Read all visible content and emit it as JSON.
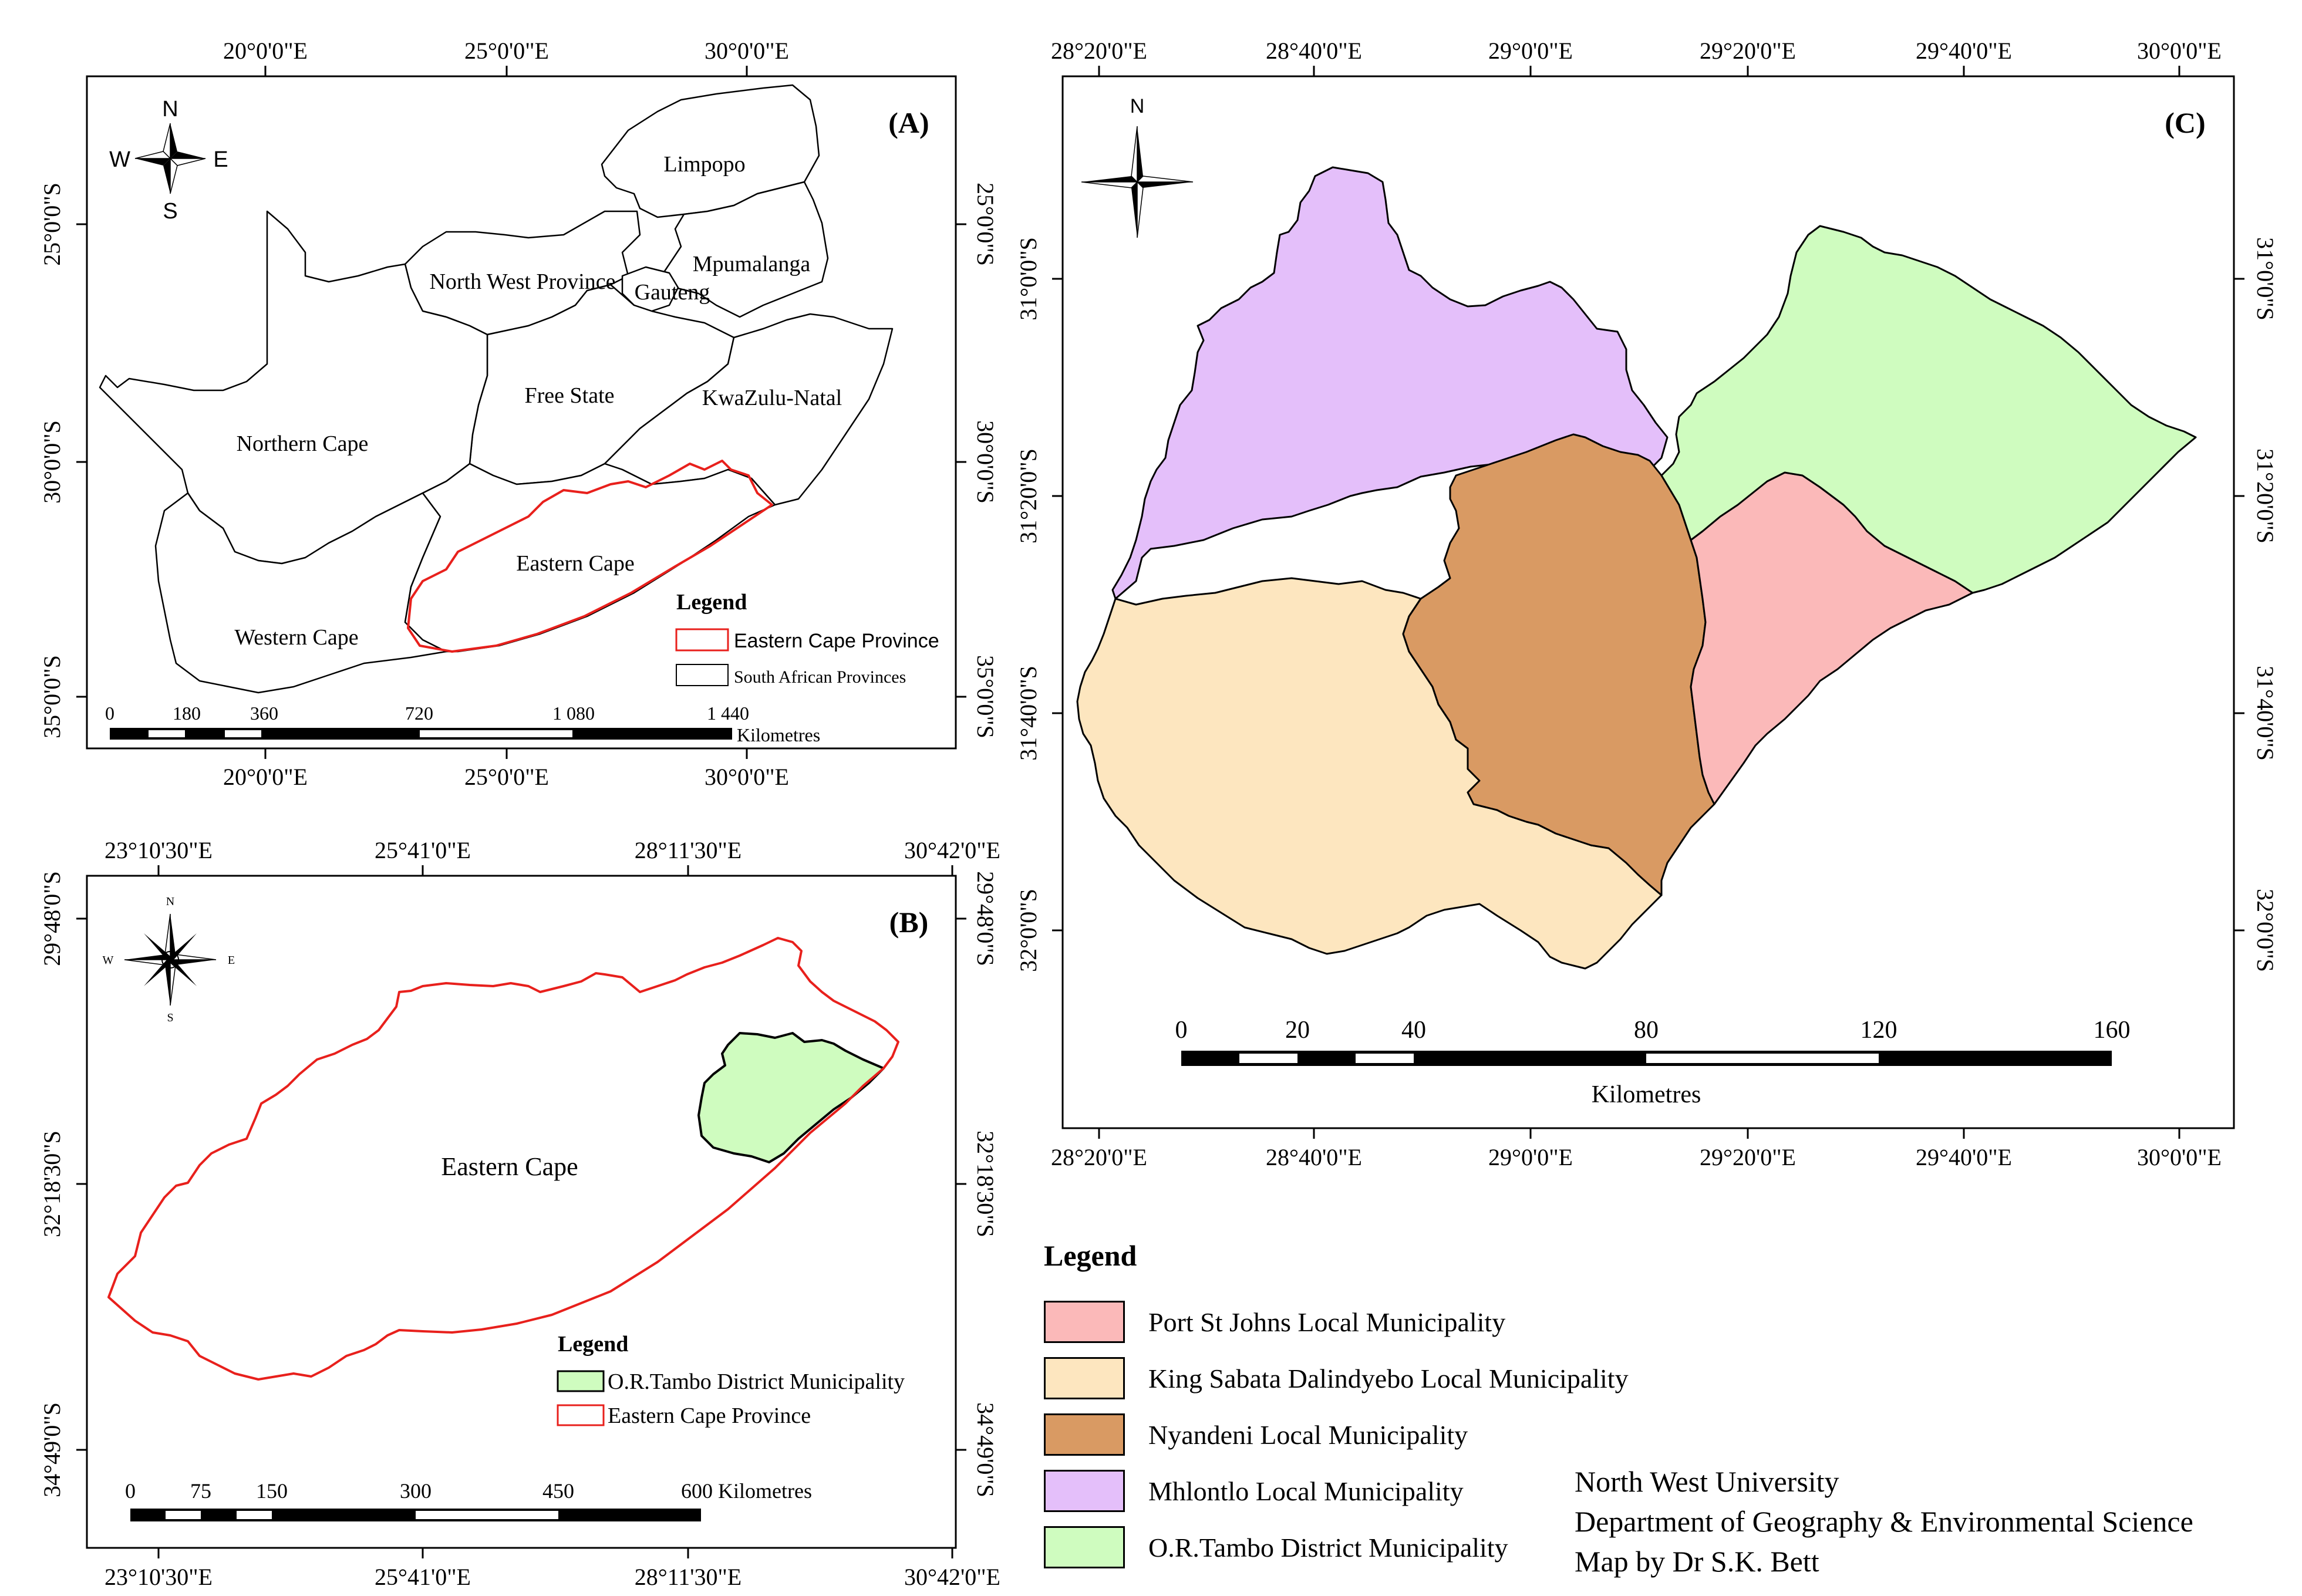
{
  "panel_a": {
    "tag": "(A)",
    "lon_top": [
      "20°0'0\"E",
      "25°0'0\"E",
      "30°0'0\"E"
    ],
    "lon_bottom": [
      "20°0'0\"E",
      "25°0'0\"E",
      "30°0'0\"E"
    ],
    "lat_left": [
      "25°0'0\"S",
      "30°0'0\"S",
      "35°0'0\"S"
    ],
    "lat_right": [
      "25°0'0\"S",
      "30°0'0\"S",
      "35°0'0\"S"
    ],
    "provinces": [
      "Limpopo",
      "North West Province",
      "Mpumalanga",
      "Gauteng",
      "Free State",
      "KwaZulu-Natal",
      "Northern Cape",
      "Eastern Cape",
      "Western Cape"
    ],
    "legend_title": "Legend",
    "legend_items": [
      "Eastern Cape Province",
      "South African Provinces"
    ],
    "scale_ticks": [
      "0",
      "180",
      "360",
      "720",
      "1 080",
      "1 440"
    ],
    "scale_unit": "Kilometres",
    "compass": {
      "n": "N",
      "s": "S",
      "e": "E",
      "w": "W"
    }
  },
  "panel_b": {
    "tag": "(B)",
    "lon_top": [
      "23°10'30\"E",
      "25°41'0\"E",
      "28°11'30\"E",
      "30°42'0\"E"
    ],
    "lon_bottom": [
      "23°10'30\"E",
      "25°41'0\"E",
      "28°11'30\"E",
      "30°42'0\"E"
    ],
    "lat_left": [
      "29°48'0\"S",
      "32°18'30\"S",
      "34°49'0\"S"
    ],
    "lat_right": [
      "29°48'0\"S",
      "32°18'30\"S",
      "34°49'0\"S"
    ],
    "region_label": "Eastern Cape",
    "legend_title": "Legend",
    "legend_items": [
      "O.R.Tambo District Municipality",
      "Eastern Cape Province"
    ],
    "scale_ticks": [
      "0",
      "75",
      "150",
      "300",
      "450",
      "600 Kilometres"
    ],
    "compass": {
      "n": "N",
      "s": "S",
      "e": "E",
      "w": "W"
    }
  },
  "panel_c": {
    "tag": "(C)",
    "lon_top": [
      "28°20'0\"E",
      "28°40'0\"E",
      "29°0'0\"E",
      "29°20'0\"E",
      "29°40'0\"E",
      "30°0'0\"E"
    ],
    "lon_bottom": [
      "28°20'0\"E",
      "28°40'0\"E",
      "29°0'0\"E",
      "29°20'0\"E",
      "29°40'0\"E",
      "30°0'0\"E"
    ],
    "lat_left": [
      "31°0'0\"S",
      "31°20'0\"S",
      "31°40'0\"S",
      "32°0'0\"S"
    ],
    "lat_right": [
      "31°0'0\"S",
      "31°20'0\"S",
      "31°40'0\"S",
      "32°0'0\"S"
    ],
    "scale_ticks": [
      "0",
      "20",
      "40",
      "80",
      "120",
      "160"
    ],
    "scale_unit": "Kilometres",
    "compass": {
      "n": "N"
    }
  },
  "main_legend": {
    "title": "Legend",
    "items": [
      {
        "label": "Port St Johns Local Municipality",
        "color": "#fbb9b9"
      },
      {
        "label": "King Sabata Dalindyebo Local Municipality",
        "color": "#fde6bf"
      },
      {
        "label": "Nyandeni Local Municipality",
        "color": "#d99a63"
      },
      {
        "label": "Mhlontlo Local Municipality",
        "color": "#e4bffa"
      },
      {
        "label": "O.R.Tambo District Municipality",
        "color": "#cffcbf"
      }
    ]
  },
  "credits": [
    "North West University",
    "Department of Geography & Environmental Science",
    "Map by Dr S.K. Bett"
  ],
  "colors": {
    "outline": "#000000",
    "boundary_red": "#e8201c",
    "or_tambo_fill": "#cffcbf"
  }
}
